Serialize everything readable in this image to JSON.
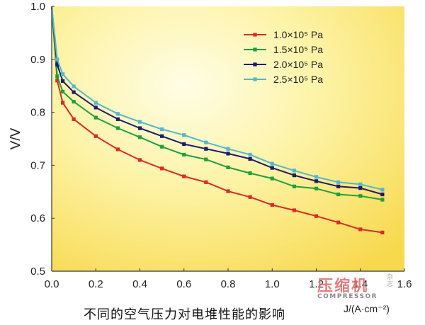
{
  "chart_data": {
    "type": "line",
    "title": "",
    "ylabel": "V/V",
    "xlabel": "J/(A·cm⁻²)",
    "caption": "不同的空气压力对电堆性能的影响",
    "xlim": [
      0.0,
      1.6
    ],
    "ylim": [
      0.5,
      1.0
    ],
    "xticks": [
      "0.0",
      "0.2",
      "0.4",
      "0.6",
      "0.8",
      "1.0",
      "1.2",
      "1.4",
      "1.6"
    ],
    "yticks": [
      "0.5",
      "0.6",
      "0.7",
      "0.8",
      "0.9",
      "1.0"
    ],
    "legend_position": "top-right",
    "grid": false,
    "series": [
      {
        "name": "1.0×10⁵ Pa",
        "color": "#e02828",
        "x": [
          0.0,
          0.025,
          0.05,
          0.1,
          0.2,
          0.3,
          0.4,
          0.5,
          0.6,
          0.7,
          0.8,
          0.9,
          1.0,
          1.1,
          1.2,
          1.3,
          1.4,
          1.5
        ],
        "y": [
          1.0,
          0.86,
          0.818,
          0.787,
          0.755,
          0.73,
          0.71,
          0.694,
          0.679,
          0.668,
          0.651,
          0.64,
          0.625,
          0.615,
          0.604,
          0.592,
          0.579,
          0.573
        ]
      },
      {
        "name": "1.5×10⁵ Pa",
        "color": "#1fa03c",
        "x": [
          0.0,
          0.025,
          0.05,
          0.1,
          0.2,
          0.3,
          0.4,
          0.5,
          0.6,
          0.7,
          0.8,
          0.9,
          1.0,
          1.1,
          1.2,
          1.3,
          1.4,
          1.5
        ],
        "y": [
          1.0,
          0.868,
          0.839,
          0.82,
          0.79,
          0.77,
          0.753,
          0.735,
          0.72,
          0.711,
          0.696,
          0.685,
          0.675,
          0.66,
          0.656,
          0.645,
          0.642,
          0.635
        ]
      },
      {
        "name": "2.0×10⁵ Pa",
        "color": "#1f1a6e",
        "x": [
          0.0,
          0.025,
          0.05,
          0.1,
          0.2,
          0.3,
          0.4,
          0.5,
          0.6,
          0.7,
          0.8,
          0.9,
          1.0,
          1.1,
          1.2,
          1.3,
          1.4,
          1.5
        ],
        "y": [
          1.0,
          0.89,
          0.859,
          0.838,
          0.809,
          0.787,
          0.77,
          0.755,
          0.74,
          0.731,
          0.722,
          0.712,
          0.695,
          0.681,
          0.67,
          0.66,
          0.657,
          0.645
        ]
      },
      {
        "name": "2.5×10⁵ Pa",
        "color": "#52b8d0",
        "x": [
          0.0,
          0.025,
          0.05,
          0.1,
          0.2,
          0.3,
          0.4,
          0.5,
          0.6,
          0.7,
          0.8,
          0.9,
          1.0,
          1.1,
          1.2,
          1.3,
          1.4,
          1.5
        ],
        "y": [
          1.0,
          0.9,
          0.872,
          0.849,
          0.818,
          0.797,
          0.782,
          0.768,
          0.757,
          0.743,
          0.731,
          0.72,
          0.703,
          0.69,
          0.678,
          0.668,
          0.664,
          0.654
        ]
      }
    ]
  },
  "watermark": {
    "main": "压缩机",
    "sub": "COMPRESSOR",
    "side": "杂志"
  }
}
